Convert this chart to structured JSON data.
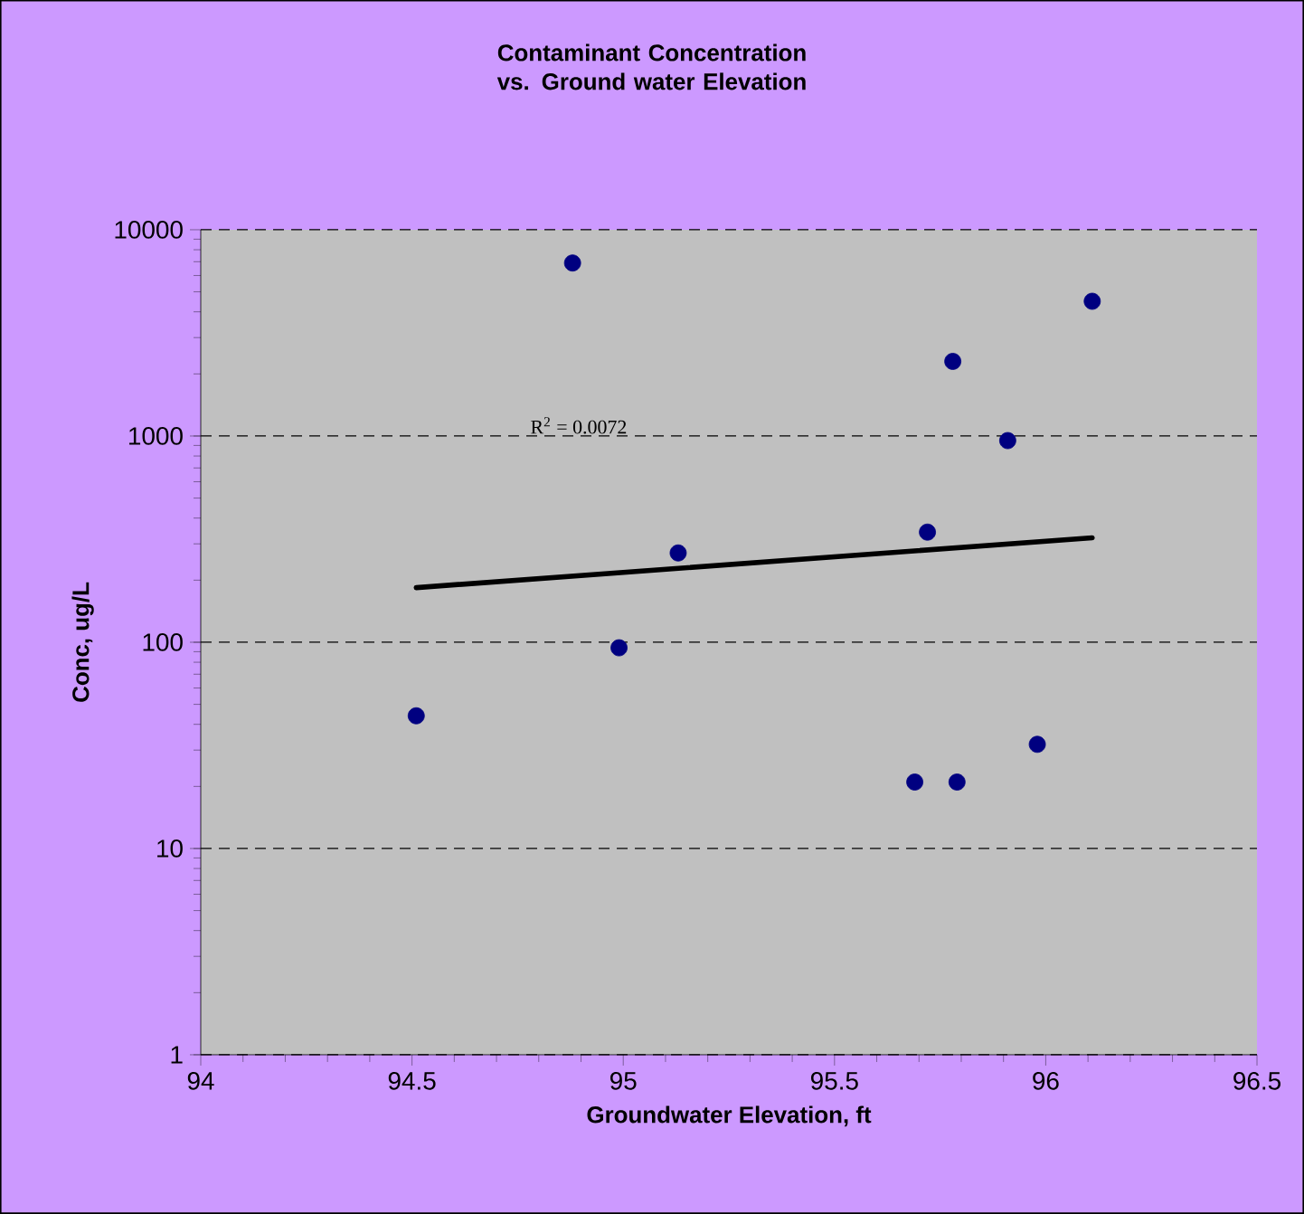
{
  "chart_data": {
    "type": "scatter",
    "title": "Contaminant Concentration vs. Ground water Elevation",
    "xlabel": "Groundwater Elevation, ft",
    "ylabel": "Conc, ug/L",
    "series": [
      {
        "marker": "circle",
        "color": "#000080",
        "x": [
          94.51,
          94.88,
          94.99,
          95.13,
          95.72,
          95.69,
          95.79,
          95.78,
          95.91,
          95.98,
          96.11
        ],
        "values": [
          44,
          6900,
          94,
          271,
          342,
          21,
          21,
          2300,
          950,
          32,
          4500
        ]
      },
      {
        "type": "line",
        "marker": "none",
        "color": "#000000",
        "x": [
          94.51,
          96.11
        ],
        "values": [
          184,
          321
        ]
      }
    ],
    "annotations": [
      "R$^{2}$ = 0.0072"
    ],
    "xlim": [
      94,
      96.5
    ],
    "xticks": [
      94,
      94.5,
      95,
      95.5,
      96,
      96.5
    ],
    "ylim": [
      1,
      10000
    ],
    "yticks": [
      1,
      10,
      100,
      1000,
      10000
    ],
    "log": "y",
    "grid": "y"
  }
}
